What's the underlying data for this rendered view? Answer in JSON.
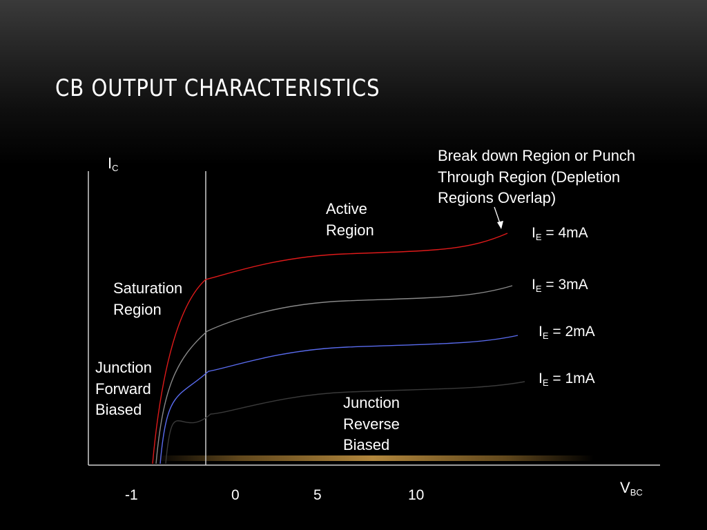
{
  "slide": {
    "title": "CB OUTPUT CHARACTERISTICS"
  },
  "colors": {
    "background": "#000000",
    "text": "#ffffff",
    "axis": "#d0d0d0",
    "curve_4mA": "#e01a1a",
    "curve_3mA": "#8a8a8a",
    "curve_2mA": "#5a6cf0",
    "curve_1mA": "#3a3a3a",
    "baseline_glow": "#d8a040"
  },
  "annotations": {
    "breakdown": [
      "Break down Region or Punch",
      "Through Region (Depletion",
      "Regions Overlap)"
    ],
    "active": [
      "Active",
      "Region"
    ],
    "saturation": [
      "Saturation",
      "Region"
    ],
    "forward": [
      "Junction",
      "Forward",
      "Biased"
    ],
    "reverse": [
      "Junction",
      "Reverse",
      "Biased"
    ]
  },
  "chart_data": {
    "type": "line",
    "title": "CB OUTPUT CHARACTERISTICS",
    "xlabel": {
      "main": "V",
      "sub": "BC"
    },
    "ylabel": {
      "main": "I",
      "sub": "C"
    },
    "x_ticks": [
      "-1",
      "0",
      "5",
      "10"
    ],
    "grid": false,
    "series": [
      {
        "id": "ie4",
        "label_main": "I",
        "label_sub": "E",
        "label_rest": " = 4mA",
        "ie_mA": 4,
        "color_key": "curve_4mA"
      },
      {
        "id": "ie3",
        "label_main": "I",
        "label_sub": "E",
        "label_rest": " = 3mA",
        "ie_mA": 3,
        "color_key": "curve_3mA"
      },
      {
        "id": "ie2",
        "label_main": "I",
        "label_sub": "E",
        "label_rest": " = 2mA",
        "ie_mA": 2,
        "color_key": "curve_2mA"
      },
      {
        "id": "ie1",
        "label_main": "I",
        "label_sub": "E",
        "label_rest": " = 1mA",
        "ie_mA": 1,
        "color_key": "curve_1mA"
      }
    ]
  }
}
